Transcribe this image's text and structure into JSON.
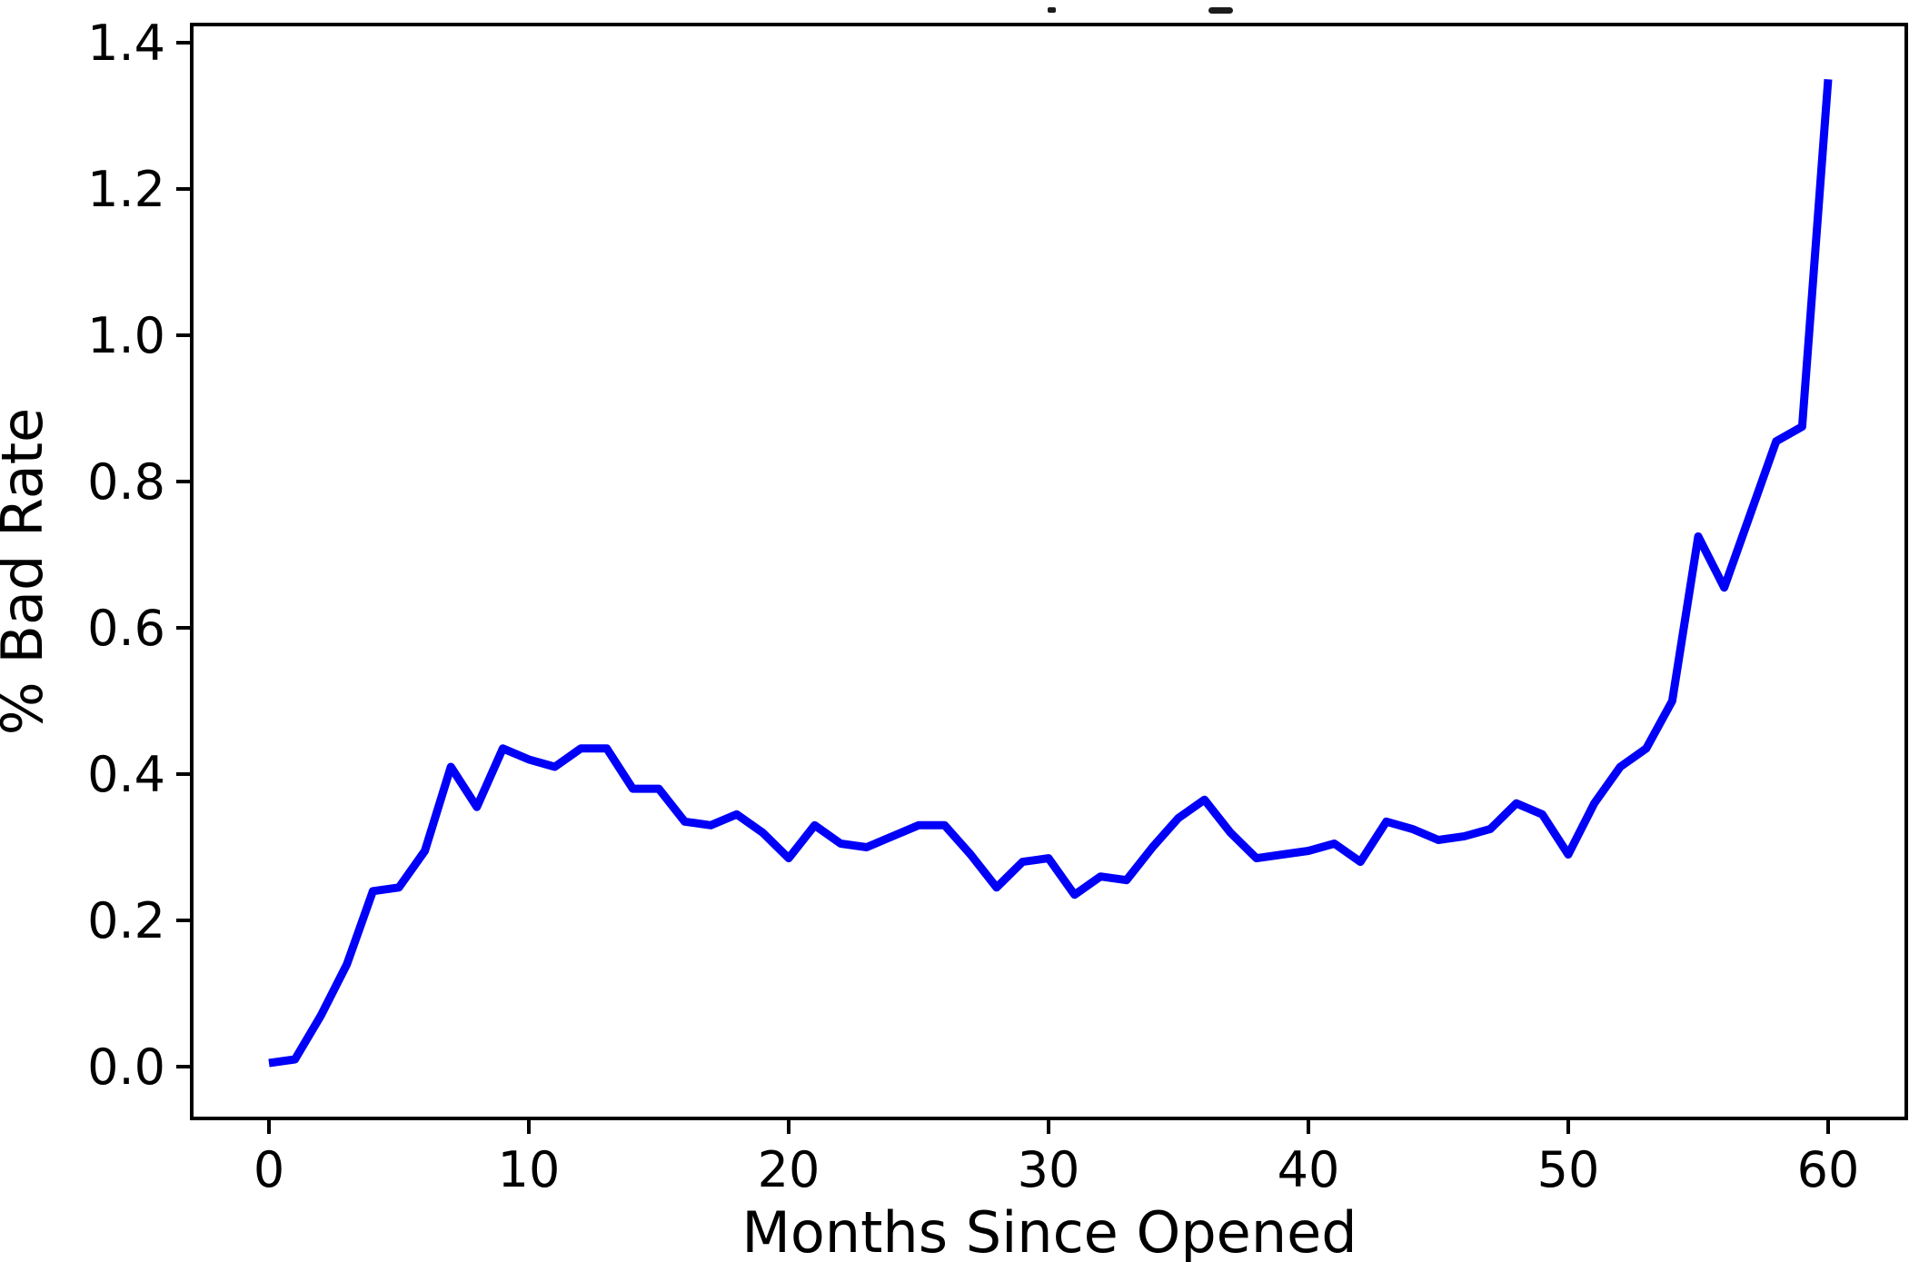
{
  "chart_data": {
    "type": "line",
    "title": "",
    "title_note": "title cropped out of frame; only two small glyph fragments visible at top edge",
    "xlabel": "Months Since Opened",
    "ylabel": "% Bad Rate",
    "x": [
      0,
      1,
      2,
      3,
      4,
      5,
      6,
      7,
      8,
      9,
      10,
      11,
      12,
      13,
      14,
      15,
      16,
      17,
      18,
      19,
      20,
      21,
      22,
      23,
      24,
      25,
      26,
      27,
      28,
      29,
      30,
      31,
      32,
      33,
      34,
      35,
      36,
      37,
      38,
      39,
      40,
      41,
      42,
      43,
      44,
      45,
      46,
      47,
      48,
      49,
      50,
      51,
      52,
      53,
      54,
      55,
      56,
      57,
      58,
      59,
      60
    ],
    "y": [
      0.005,
      0.01,
      0.07,
      0.14,
      0.24,
      0.245,
      0.295,
      0.41,
      0.355,
      0.435,
      0.42,
      0.41,
      0.435,
      0.435,
      0.38,
      0.38,
      0.335,
      0.33,
      0.345,
      0.32,
      0.285,
      0.33,
      0.305,
      0.3,
      0.315,
      0.33,
      0.33,
      0.29,
      0.245,
      0.28,
      0.285,
      0.235,
      0.26,
      0.255,
      0.3,
      0.34,
      0.365,
      0.32,
      0.285,
      0.29,
      0.295,
      0.305,
      0.28,
      0.335,
      0.325,
      0.31,
      0.315,
      0.325,
      0.36,
      0.345,
      0.29,
      0.36,
      0.41,
      0.435,
      0.5,
      0.725,
      0.655,
      0.755,
      0.855,
      0.875,
      1.35
    ],
    "x_tick_values": [
      0,
      10,
      20,
      30,
      40,
      50,
      60
    ],
    "x_tick_labels": [
      "0",
      "10",
      "20",
      "30",
      "40",
      "50",
      "60"
    ],
    "y_tick_values": [
      0.0,
      0.2,
      0.4,
      0.6,
      0.8,
      1.0,
      1.2,
      1.4
    ],
    "y_tick_labels": [
      "0.0",
      "0.2",
      "0.4",
      "0.6",
      "0.8",
      "1.0",
      "1.2",
      "1.4"
    ],
    "xlim": [
      -3,
      63
    ],
    "ylim": [
      -0.073,
      1.423
    ],
    "grid": false,
    "legend": null,
    "line_color": "#0000f8",
    "axis_color": "#000000",
    "background_color": "#ffffff"
  }
}
